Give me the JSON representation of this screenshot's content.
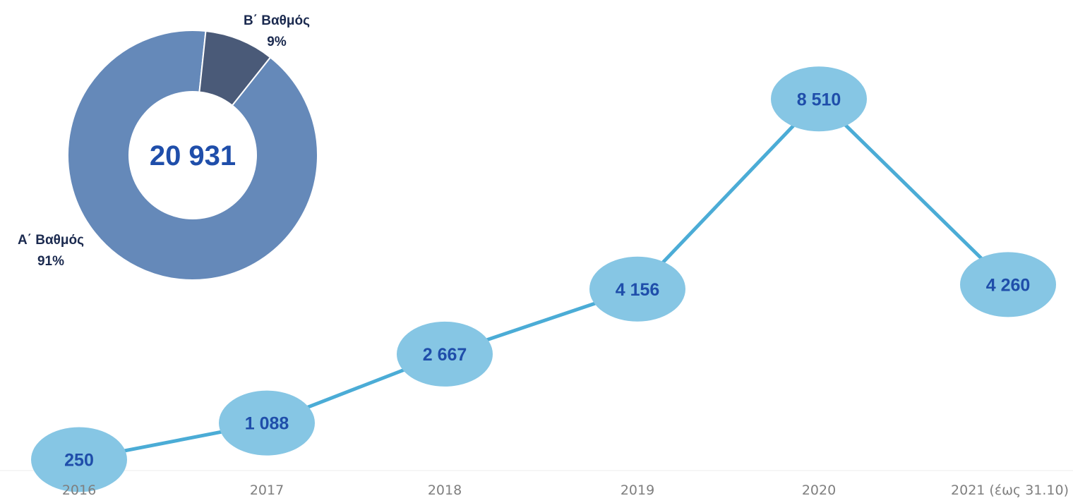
{
  "chart_data": [
    {
      "type": "line",
      "categories": [
        "2016",
        "2017",
        "2018",
        "2019",
        "2020",
        "2021 (έως 31.10)"
      ],
      "series": [
        {
          "values": [
            250,
            1088,
            2667,
            4156,
            8510,
            4260
          ]
        }
      ],
      "data_labels": [
        "250",
        "1 088",
        "2 667",
        "4 156",
        "8 510",
        "4 260"
      ],
      "ylim": [
        0,
        9500
      ],
      "grid": false,
      "colors": {
        "line": "#4bacd6",
        "marker": "#86c6e4",
        "label": "#1f4eaa",
        "axis": "#eeeeee",
        "tick": "#7f7f7f"
      }
    },
    {
      "type": "pie",
      "donut": true,
      "center_label": "20 931",
      "slices": [
        {
          "name": "Α΄ Βαθμός",
          "pct_label": "91%",
          "value": 91,
          "color": "#6589b9"
        },
        {
          "name": "Β΄ Βαθμός",
          "pct_label": "9%",
          "value": 9,
          "color": "#4a5a78"
        }
      ],
      "colors": {
        "center": "#1f4eaa",
        "slice_labels": "#1b2a4f"
      }
    }
  ]
}
